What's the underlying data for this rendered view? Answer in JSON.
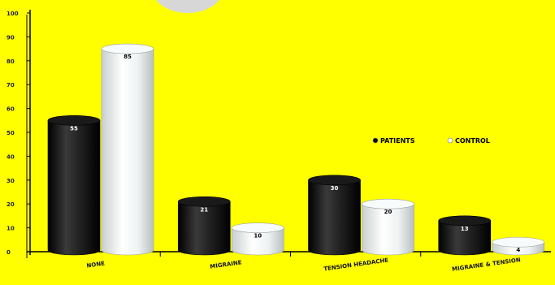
{
  "chart_data": {
    "type": "bar",
    "style": "3d-cylinder",
    "categories": [
      "NONE",
      "MIGRAINE",
      "TENSION HEADACHE",
      "MIGRAINE & TENSION"
    ],
    "series": [
      {
        "name": "PATIENTS",
        "values": [
          55,
          21,
          30,
          13
        ],
        "color": "#111111"
      },
      {
        "name": "CONTROL",
        "values": [
          85,
          10,
          20,
          4
        ],
        "color": "#e6ebeb"
      }
    ],
    "y_ticks": [
      "0",
      "10",
      "20",
      "30",
      "40",
      "50",
      "60",
      "70",
      "80",
      "90",
      "100"
    ],
    "ylim": [
      0,
      100
    ],
    "grid": false,
    "legend_position": "right-middle",
    "colors": {
      "background": "#ffff00",
      "plot_area": "#ffff00",
      "axis": "#000000"
    }
  }
}
